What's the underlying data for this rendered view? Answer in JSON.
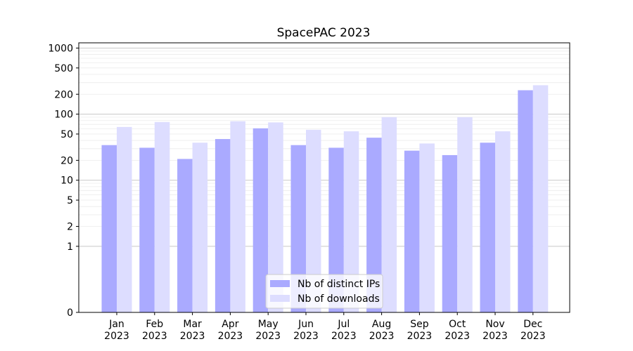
{
  "chart_data": {
    "type": "bar",
    "title": "SpacePAC 2023",
    "xlabel": "",
    "ylabel": "",
    "scale": "symlog",
    "ylim": [
      0,
      1200
    ],
    "categories": [
      "Jan\n2023",
      "Feb\n2023",
      "Mar\n2023",
      "Apr\n2023",
      "May\n2023",
      "Jun\n2023",
      "Jul\n2023",
      "Aug\n2023",
      "Sep\n2023",
      "Oct\n2023",
      "Nov\n2023",
      "Dec\n2023"
    ],
    "y_ticks": [
      0,
      1,
      2,
      5,
      10,
      20,
      50,
      100,
      200,
      500,
      1000
    ],
    "y_tick_labels": [
      "0",
      "1",
      "2",
      "5",
      "10",
      "20",
      "50",
      "100",
      "200",
      "500",
      "1000"
    ],
    "series": [
      {
        "name": "Nb of distinct IPs",
        "color": "#aaaaff",
        "values": [
          34,
          31,
          21,
          42,
          61,
          34,
          31,
          44,
          28,
          24,
          37,
          230
        ]
      },
      {
        "name": "Nb of downloads",
        "color": "#ddddff",
        "values": [
          64,
          76,
          37,
          78,
          75,
          58,
          55,
          90,
          36,
          90,
          55,
          274
        ]
      }
    ],
    "grid": true,
    "legend_position": "lower-center"
  }
}
